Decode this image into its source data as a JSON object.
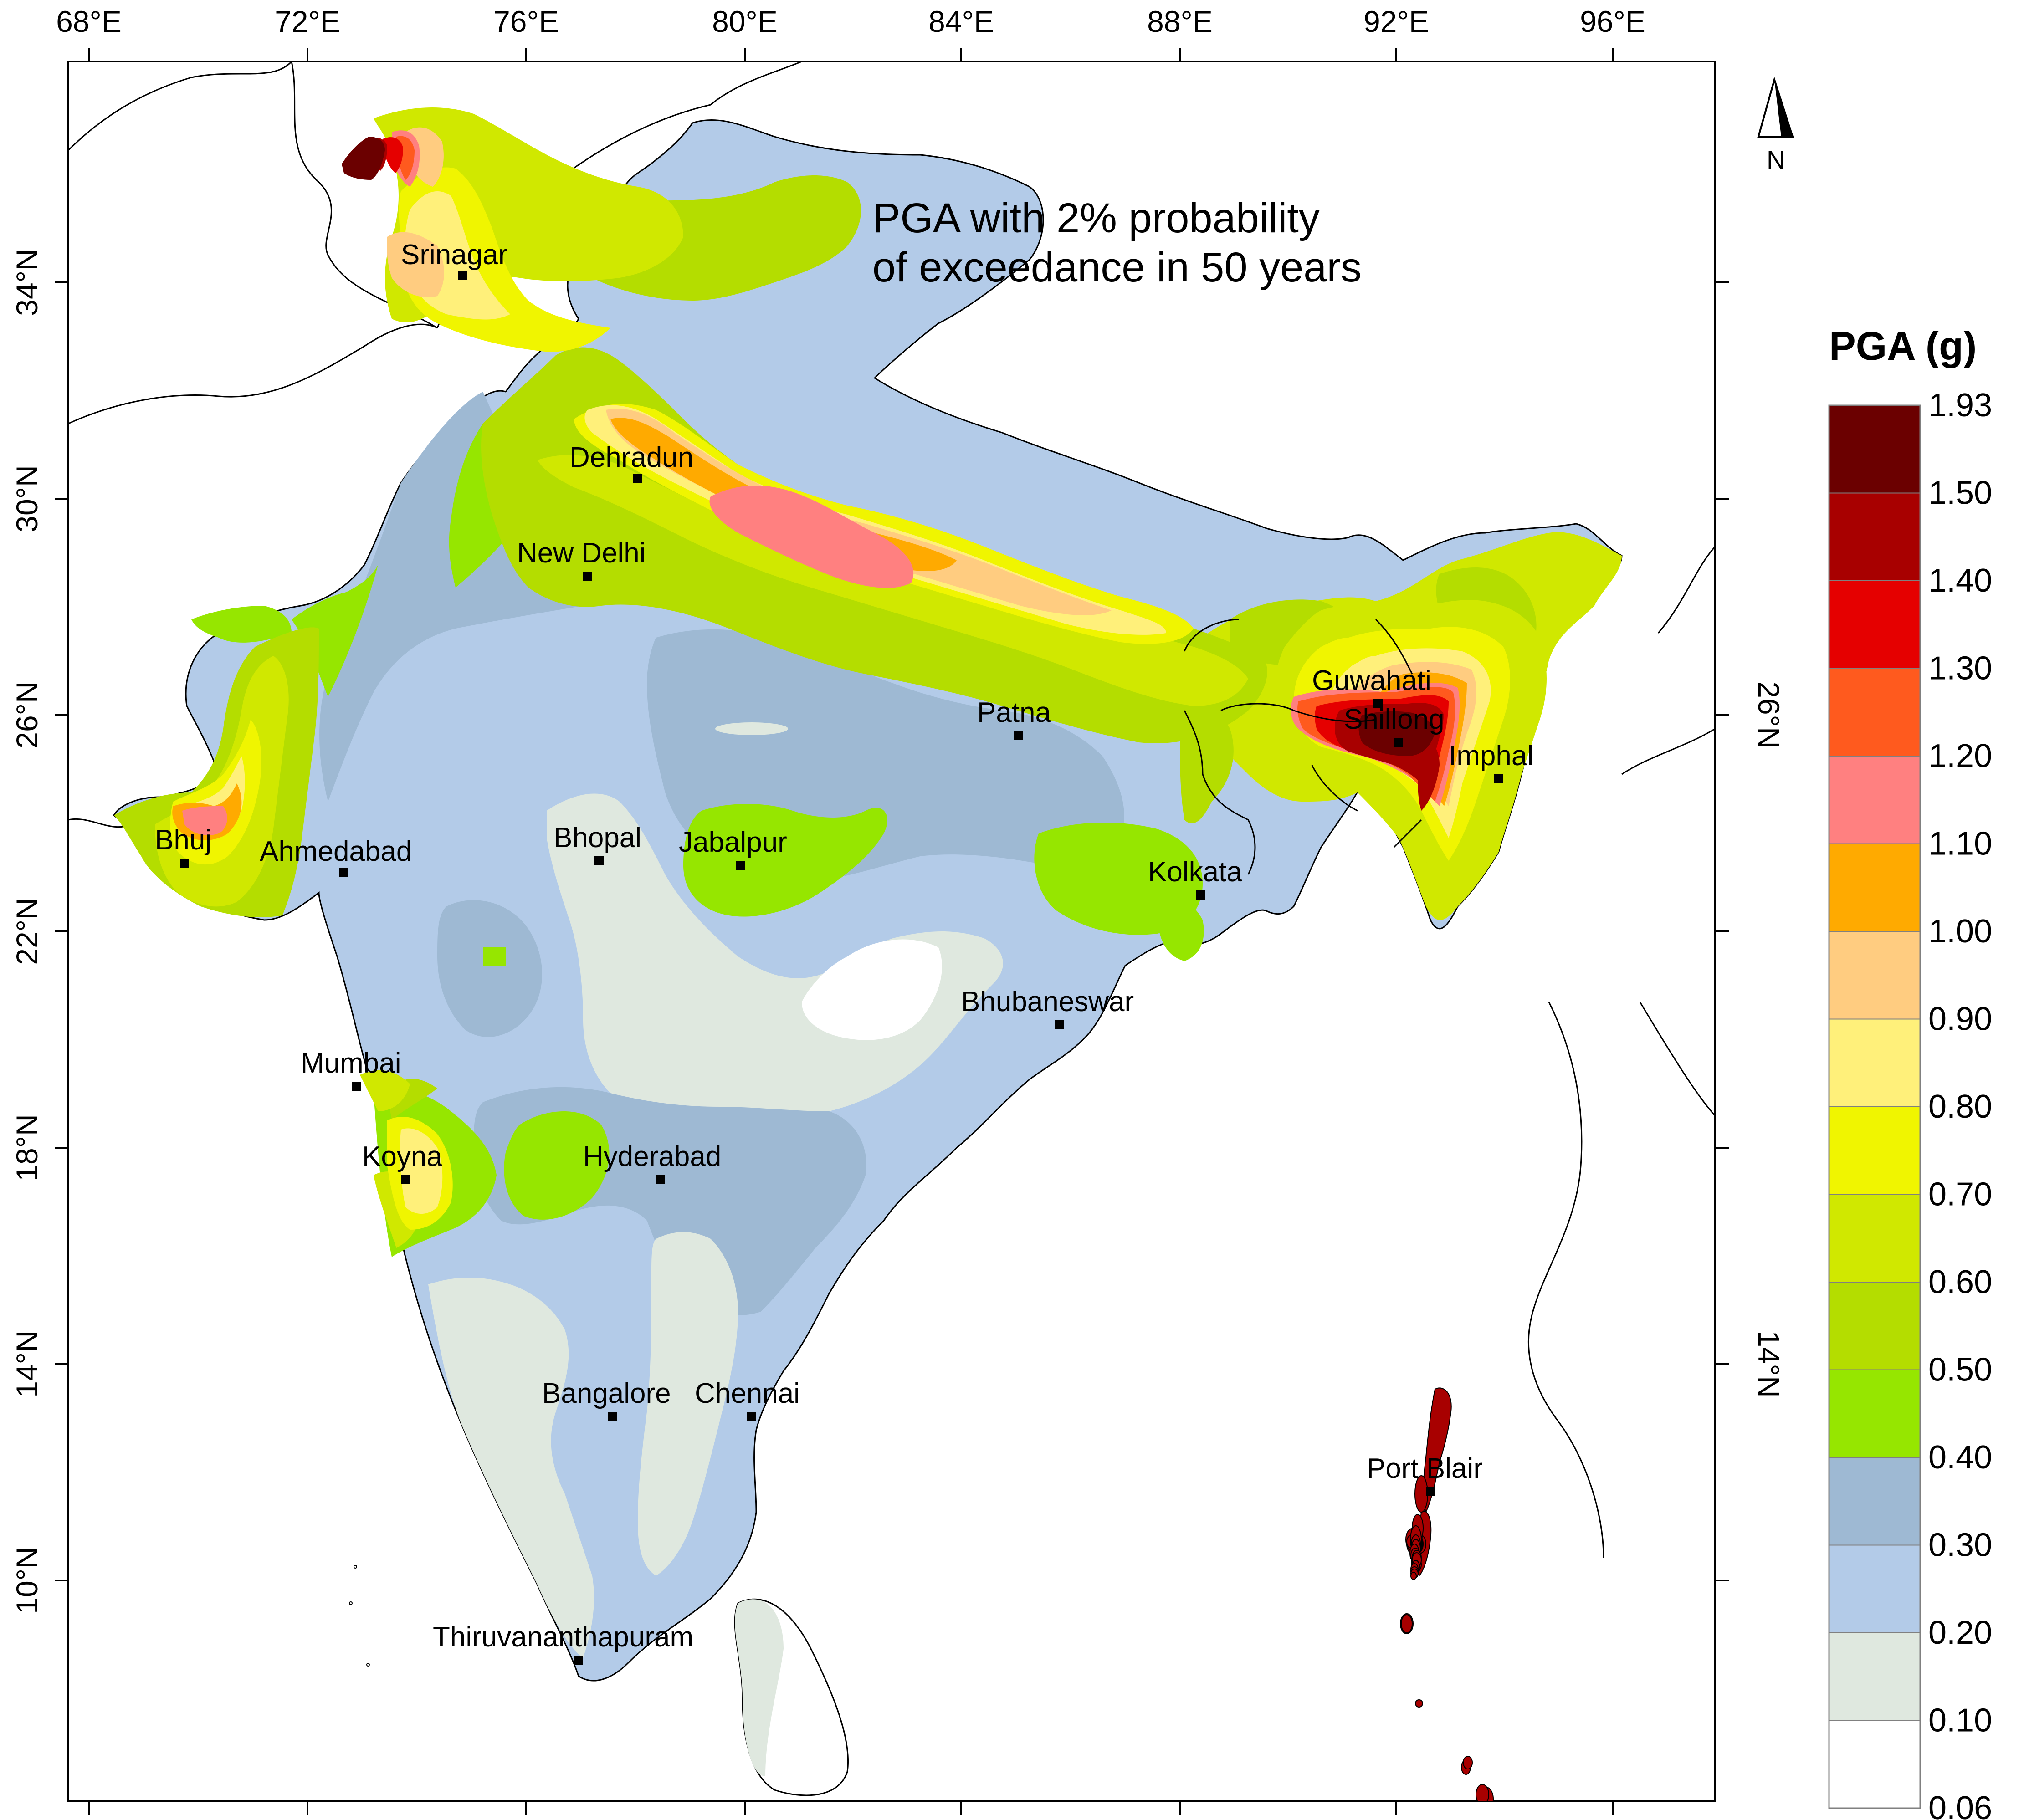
{
  "map": {
    "title_line1": "PGA with 2% probability",
    "title_line2": "of exceedance in 50 years",
    "north_label": "N",
    "lon_ticks": [
      "68°E",
      "72°E",
      "76°E",
      "80°E",
      "84°E",
      "88°E",
      "92°E",
      "96°E"
    ],
    "lat_ticks": [
      "34°N",
      "30°N",
      "26°N",
      "22°N",
      "18°N",
      "14°N",
      "10°N"
    ],
    "right_lat_ticks": [
      "26°N",
      "14°N"
    ],
    "cities": [
      {
        "name": "Srinagar"
      },
      {
        "name": "Dehradun"
      },
      {
        "name": "New Delhi"
      },
      {
        "name": "Guwahati"
      },
      {
        "name": "Shillong"
      },
      {
        "name": "Imphal"
      },
      {
        "name": "Patna"
      },
      {
        "name": "Bhuj"
      },
      {
        "name": "Ahmedabad"
      },
      {
        "name": "Bhopal"
      },
      {
        "name": "Jabalpur"
      },
      {
        "name": "Kolkata"
      },
      {
        "name": "Bhubaneswar"
      },
      {
        "name": "Mumbai"
      },
      {
        "name": "Koyna"
      },
      {
        "name": "Hyderabad"
      },
      {
        "name": "Bangalore"
      },
      {
        "name": "Chennai"
      },
      {
        "name": "Port Blair"
      },
      {
        "name": "Thiruvananthapuram"
      }
    ]
  },
  "legend": {
    "title": "PGA (g)",
    "labels": [
      "1.93",
      "1.50",
      "1.40",
      "1.30",
      "1.20",
      "1.10",
      "1.00",
      "0.90",
      "0.80",
      "0.70",
      "0.60",
      "0.50",
      "0.40",
      "0.30",
      "0.20",
      "0.10",
      "0.06"
    ],
    "colors": [
      "#6b0000",
      "#a80000",
      "#e50000",
      "#ff5a1e",
      "#ff8080",
      "#ffaa00",
      "#ffcc80",
      "#fff07a",
      "#f0f500",
      "#d0e800",
      "#b4dd00",
      "#96e600",
      "#9eb9d3",
      "#b3cbe8",
      "#dfe8df",
      "#ffffff"
    ]
  }
}
